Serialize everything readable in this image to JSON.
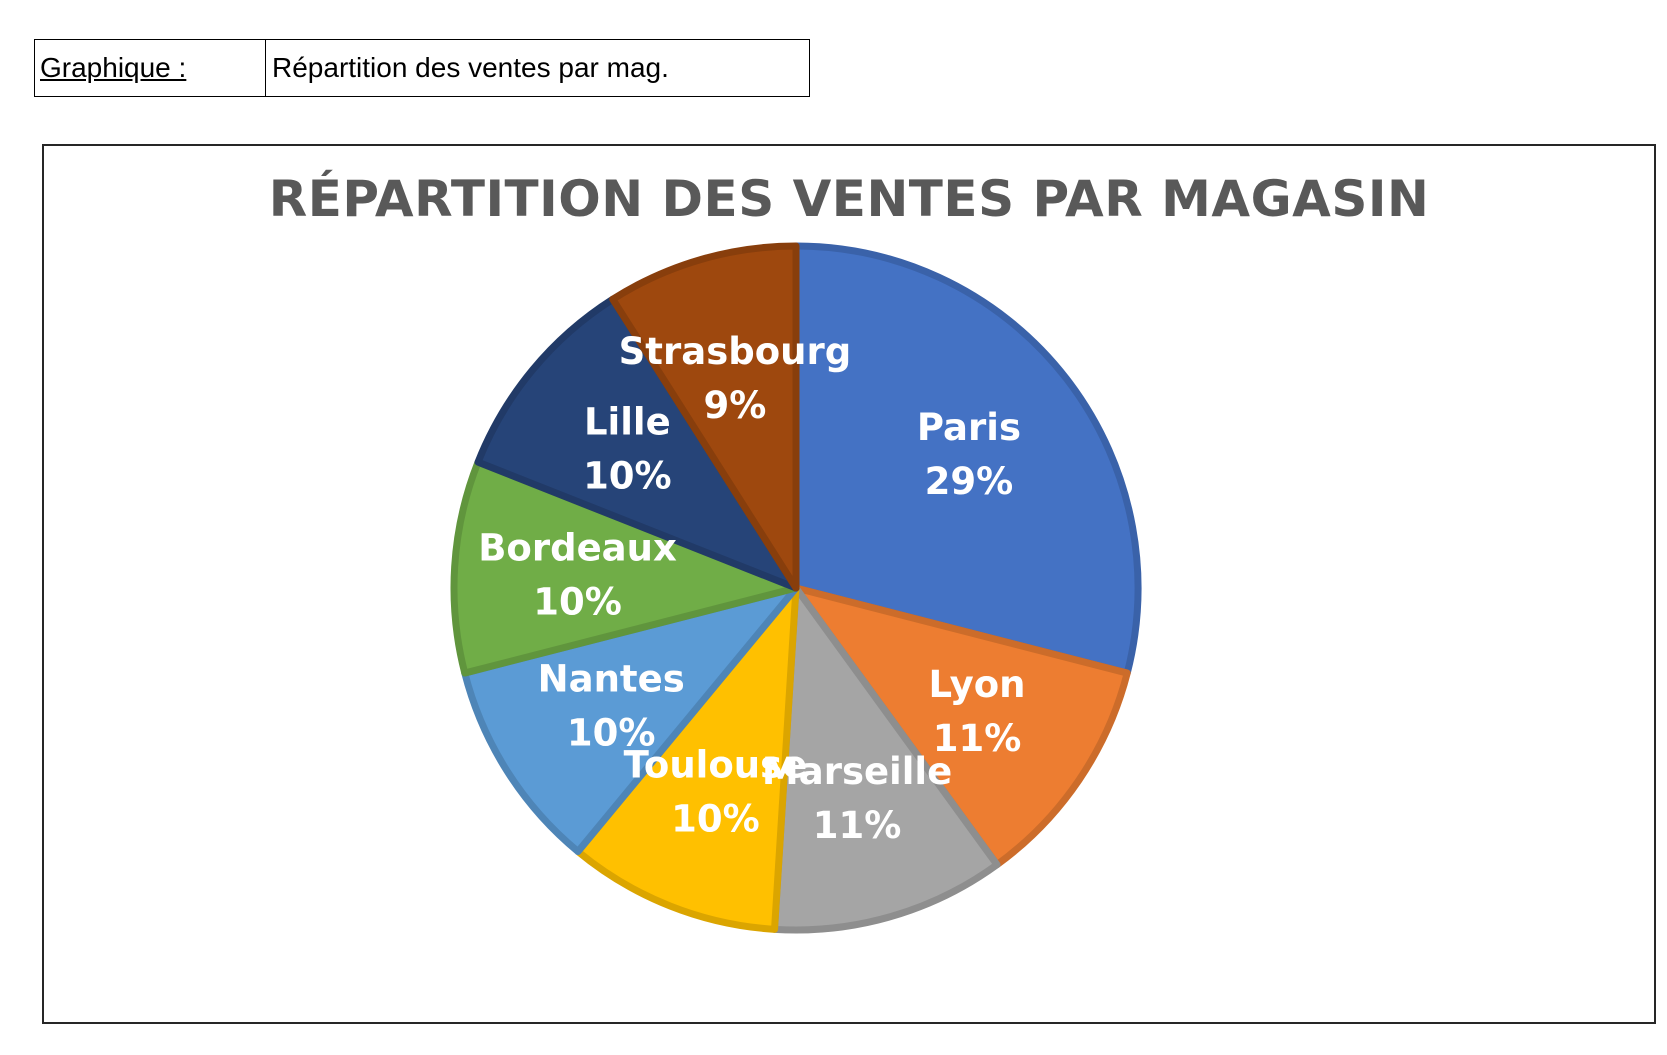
{
  "header": {
    "label": "Graphique :",
    "value": "Répartition des ventes par mag."
  },
  "chart_data": {
    "type": "pie",
    "title": "RÉPARTITION DES VENTES PAR MAGASIN",
    "categories": [
      "Paris",
      "Lyon",
      "Marseille",
      "Toulouse",
      "Nantes",
      "Bordeaux",
      "Lille",
      "Strasbourg"
    ],
    "values": [
      29,
      11,
      11,
      10,
      10,
      10,
      10,
      9
    ],
    "value_labels": [
      "29%",
      "11%",
      "11%",
      "10%",
      "10%",
      "10%",
      "10%",
      "9%"
    ],
    "colors": [
      "#4472C4",
      "#ED7D31",
      "#A5A5A5",
      "#FFC000",
      "#5B9BD5",
      "#70AD47",
      "#264478",
      "#9E480E"
    ],
    "start": "12 o'clock",
    "direction": "clockwise",
    "legend": "none",
    "data_labels": "inside"
  }
}
